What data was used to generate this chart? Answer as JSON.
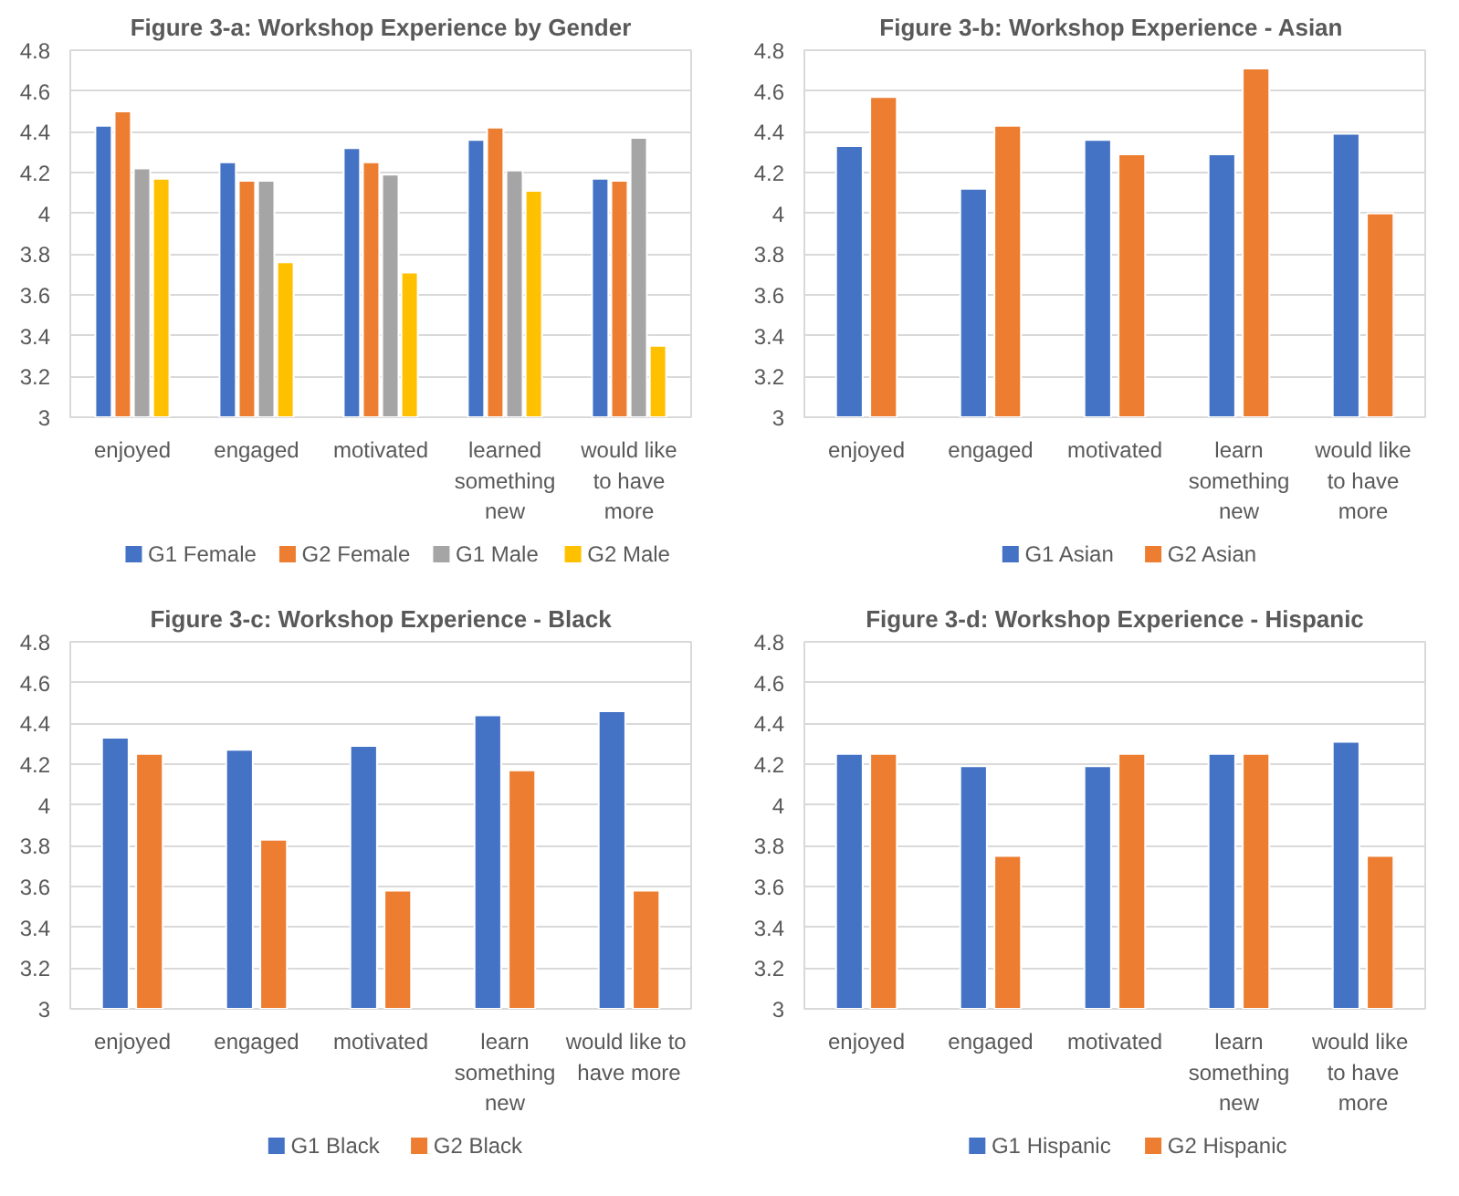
{
  "chart_data": [
    {
      "type": "bar",
      "title": "Figure 3-a: Workshop Experience by Gender",
      "categories": [
        "enjoyed",
        "engaged",
        "motivated",
        "learned\nsomething\nnew",
        "would like\nto have\nmore"
      ],
      "ylim": [
        3,
        4.8
      ],
      "yticks": [
        3,
        3.2,
        3.4,
        3.6,
        3.8,
        4,
        4.2,
        4.4,
        4.6,
        4.8
      ],
      "grid": "y",
      "legend": "bottom",
      "series": [
        {
          "name": "G1 Female",
          "color": "#4472c4",
          "values": [
            4.43,
            4.25,
            4.32,
            4.36,
            4.17
          ]
        },
        {
          "name": "G2 Female",
          "color": "#ed7d31",
          "values": [
            4.5,
            4.16,
            4.25,
            4.42,
            4.16
          ]
        },
        {
          "name": "G1 Male",
          "color": "#a5a5a5",
          "values": [
            4.22,
            4.16,
            4.19,
            4.21,
            4.37
          ]
        },
        {
          "name": "G2 Male",
          "color": "#ffc000",
          "values": [
            4.17,
            3.76,
            3.71,
            4.11,
            3.35
          ]
        }
      ]
    },
    {
      "type": "bar",
      "title": "Figure 3-b:  Workshop Experience - Asian",
      "categories": [
        "enjoyed",
        "engaged",
        "motivated",
        "learn\nsomething\nnew",
        "would like\nto have\nmore"
      ],
      "ylim": [
        3,
        4.8
      ],
      "yticks": [
        3,
        3.2,
        3.4,
        3.6,
        3.8,
        4,
        4.2,
        4.4,
        4.6,
        4.8
      ],
      "grid": "y",
      "legend": "bottom",
      "series": [
        {
          "name": "G1 Asian",
          "color": "#4472c4",
          "values": [
            4.33,
            4.12,
            4.36,
            4.29,
            4.39
          ]
        },
        {
          "name": "G2 Asian",
          "color": "#ed7d31",
          "values": [
            4.57,
            4.43,
            4.29,
            4.71,
            4.0
          ]
        }
      ]
    },
    {
      "type": "bar",
      "title": "Figure 3-c: Workshop Experience - Black",
      "categories": [
        "enjoyed",
        "engaged",
        "motivated",
        "learn\nsomething\nnew",
        "would  like to\nhave more"
      ],
      "ylim": [
        3,
        4.8
      ],
      "yticks": [
        3,
        3.2,
        3.4,
        3.6,
        3.8,
        4,
        4.2,
        4.4,
        4.6,
        4.8
      ],
      "grid": "y",
      "legend": "bottom",
      "series": [
        {
          "name": "G1 Black",
          "color": "#4472c4",
          "values": [
            4.33,
            4.27,
            4.29,
            4.44,
            4.46
          ]
        },
        {
          "name": "G2 Black",
          "color": "#ed7d31",
          "values": [
            4.25,
            3.83,
            3.58,
            4.17,
            3.58
          ]
        }
      ]
    },
    {
      "type": "bar",
      "title": "Figure 3-d: Workshop Experience - Hispanic",
      "categories": [
        "enjoyed",
        "engaged",
        "motivated",
        "learn\nsomething\nnew",
        "would  like\nto have\nmore"
      ],
      "ylim": [
        3,
        4.8
      ],
      "yticks": [
        3,
        3.2,
        3.4,
        3.6,
        3.8,
        4,
        4.2,
        4.4,
        4.6,
        4.8
      ],
      "grid": "y",
      "legend": "bottom",
      "series": [
        {
          "name": "G1 Hispanic",
          "color": "#4472c4",
          "values": [
            4.25,
            4.19,
            4.19,
            4.25,
            4.31
          ]
        },
        {
          "name": "G2 Hispanic",
          "color": "#ed7d31",
          "values": [
            4.25,
            3.75,
            4.25,
            4.25,
            3.75
          ]
        }
      ]
    }
  ]
}
